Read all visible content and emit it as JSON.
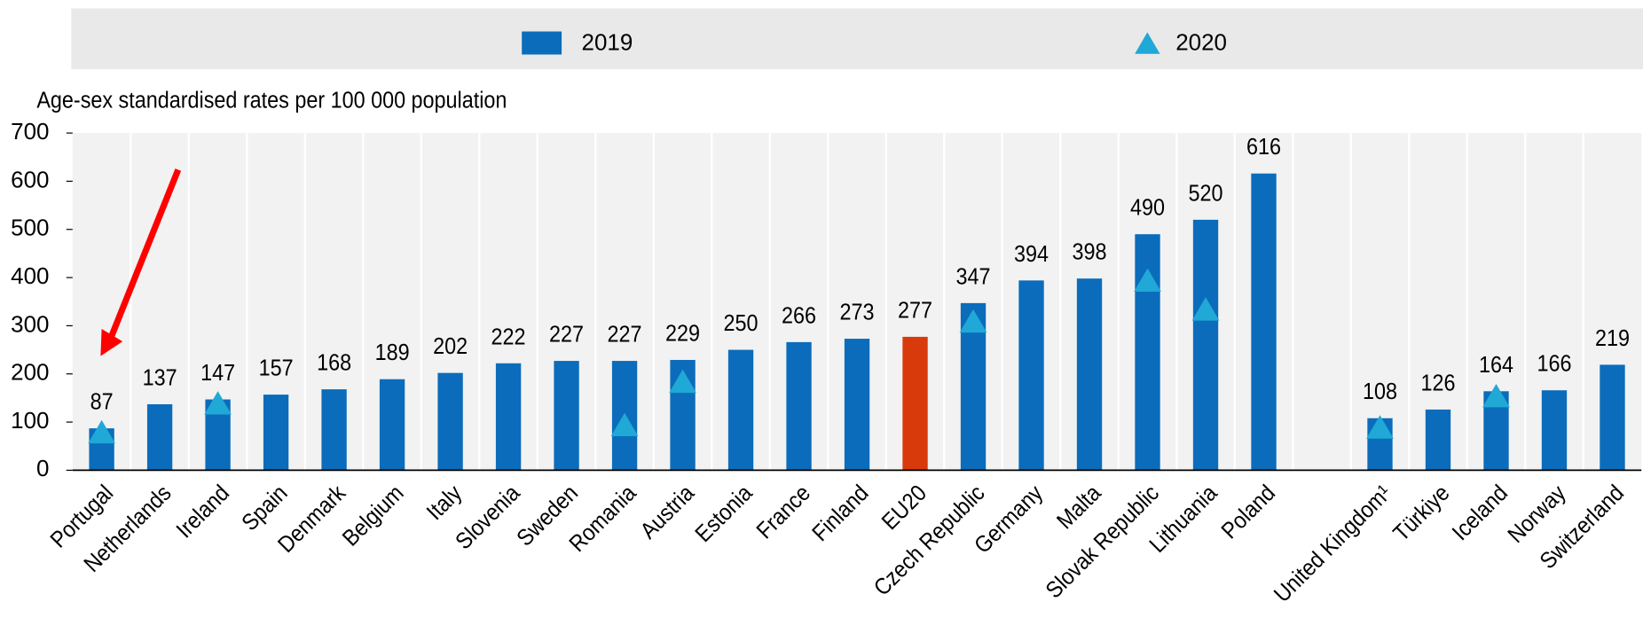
{
  "chart_data": {
    "type": "bar",
    "y_axis_label": "Age-sex standardised rates per 100 000 population",
    "categories": [
      "Portugal",
      "Netherlands",
      "Ireland",
      "Spain",
      "Denmark",
      "Belgium",
      "Italy",
      "Slovenia",
      "Sweden",
      "Romania",
      "Austria",
      "Estonia",
      "France",
      "Finland",
      "EU20",
      "Czech Republic",
      "Germany",
      "Malta",
      "Slovak Republic",
      "Lithuania",
      "Poland",
      null,
      "United Kingdom¹",
      "Türkiye",
      "Iceland",
      "Norway",
      "Switzerland"
    ],
    "series": [
      {
        "name": "2019",
        "color": "#0b6cbb",
        "colors": [
          "#0b6cbb",
          "#0b6cbb",
          "#0b6cbb",
          "#0b6cbb",
          "#0b6cbb",
          "#0b6cbb",
          "#0b6cbb",
          "#0b6cbb",
          "#0b6cbb",
          "#0b6cbb",
          "#0b6cbb",
          "#0b6cbb",
          "#0b6cbb",
          "#0b6cbb",
          "#d93a0b",
          "#0b6cbb",
          "#0b6cbb",
          "#0b6cbb",
          "#0b6cbb",
          "#0b6cbb",
          "#0b6cbb",
          "#0b6cbb",
          "#0b6cbb",
          "#0b6cbb",
          "#0b6cbb",
          "#0b6cbb",
          "#0b6cbb"
        ],
        "values": [
          87,
          137,
          147,
          157,
          168,
          189,
          202,
          222,
          227,
          227,
          229,
          250,
          266,
          273,
          277,
          347,
          394,
          398,
          490,
          520,
          616,
          null,
          108,
          126,
          164,
          166,
          219
        ]
      },
      {
        "name": "2020",
        "color": "#20a8d6",
        "marker": "triangle",
        "values": [
          80,
          null,
          140,
          null,
          null,
          null,
          null,
          null,
          null,
          95,
          185,
          null,
          null,
          null,
          null,
          310,
          null,
          null,
          395,
          335,
          null,
          null,
          90,
          null,
          155,
          null,
          null
        ]
      }
    ],
    "ylim": [
      0,
      700
    ],
    "yticks": [
      0,
      100,
      200,
      300,
      400,
      500,
      600,
      700
    ],
    "grid": false
  }
}
